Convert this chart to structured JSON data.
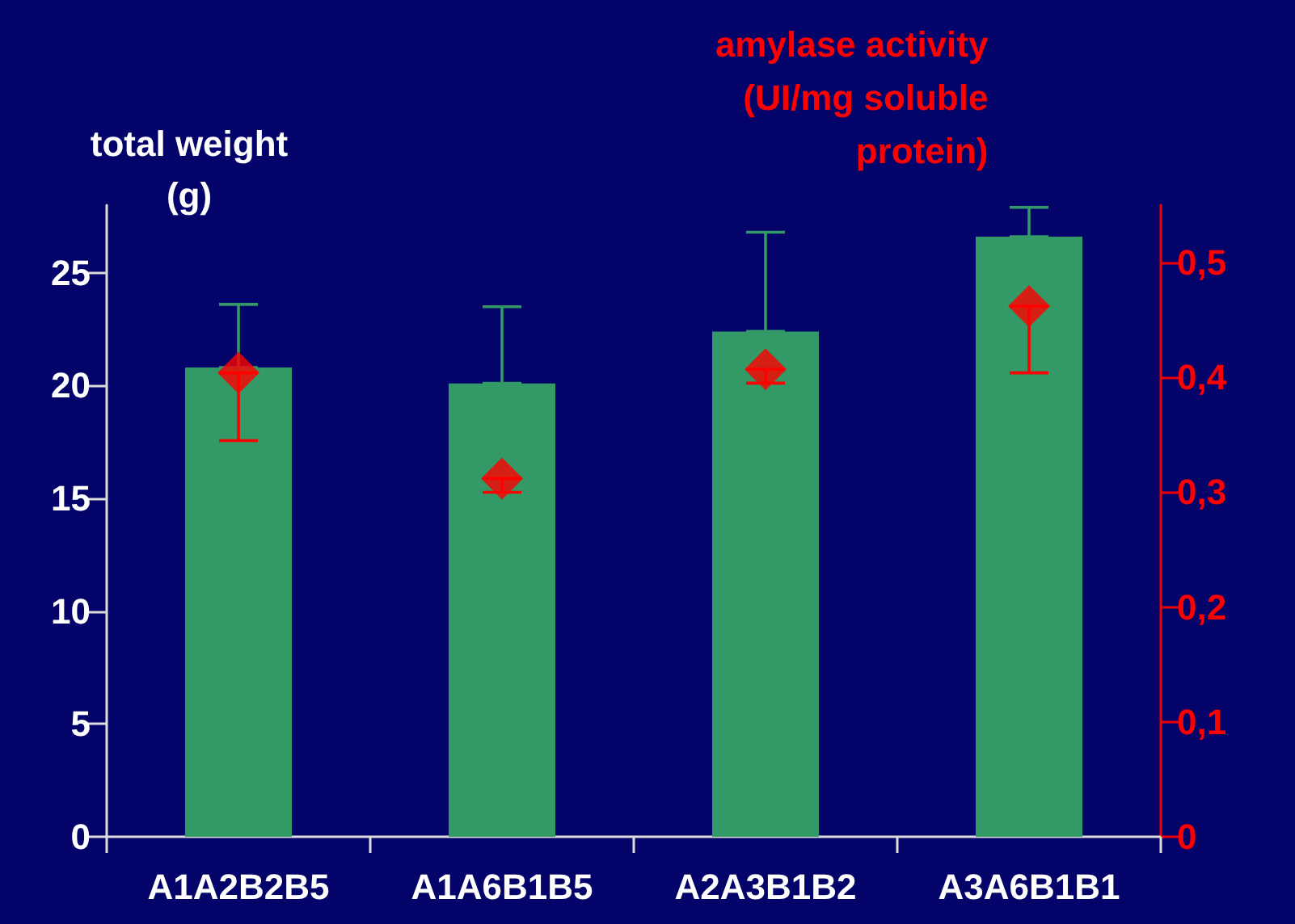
{
  "chart_data": {
    "type": "bar",
    "ylabel": "total weight\n(g)",
    "y2label": "amylase activity\n(UI/mg soluble\nprotein)",
    "categories": [
      "A1A2B2B5",
      "A1A6B1B5",
      "A2A3B1B2",
      "A3A6B1B1"
    ],
    "series": [
      {
        "color": "#339966",
        "values": [
          20.8,
          20.1,
          22.4,
          26.6
        ],
        "errors": [
          [
            20.8,
            23.6
          ],
          [
            20.1,
            23.5
          ],
          [
            22.4,
            26.8
          ],
          [
            26.6,
            27.9
          ]
        ]
      },
      {
        "type": "scatter",
        "axis": "y2",
        "marker": "diamond",
        "color": "#ff0000",
        "values": [
          0.404,
          0.312,
          0.407,
          0.462
        ],
        "errors": [
          [
            0.345,
            0.404
          ],
          [
            0.3,
            0.312
          ],
          [
            0.395,
            0.407
          ],
          [
            0.404,
            0.462
          ]
        ]
      }
    ],
    "ylim": [
      0,
      28
    ],
    "yticks": [
      0,
      5,
      10,
      15,
      20,
      25
    ],
    "y2lim": [
      0,
      0.55
    ],
    "y2ticks": [
      {
        "value": 0,
        "label": "0"
      },
      {
        "value": 0.1,
        "label": "0,1"
      },
      {
        "value": 0.2,
        "label": "0,2"
      },
      {
        "value": 0.3,
        "label": "0,3"
      },
      {
        "value": 0.4,
        "label": "0,4"
      },
      {
        "value": 0.5,
        "label": "0,5"
      }
    ],
    "grid": false
  }
}
